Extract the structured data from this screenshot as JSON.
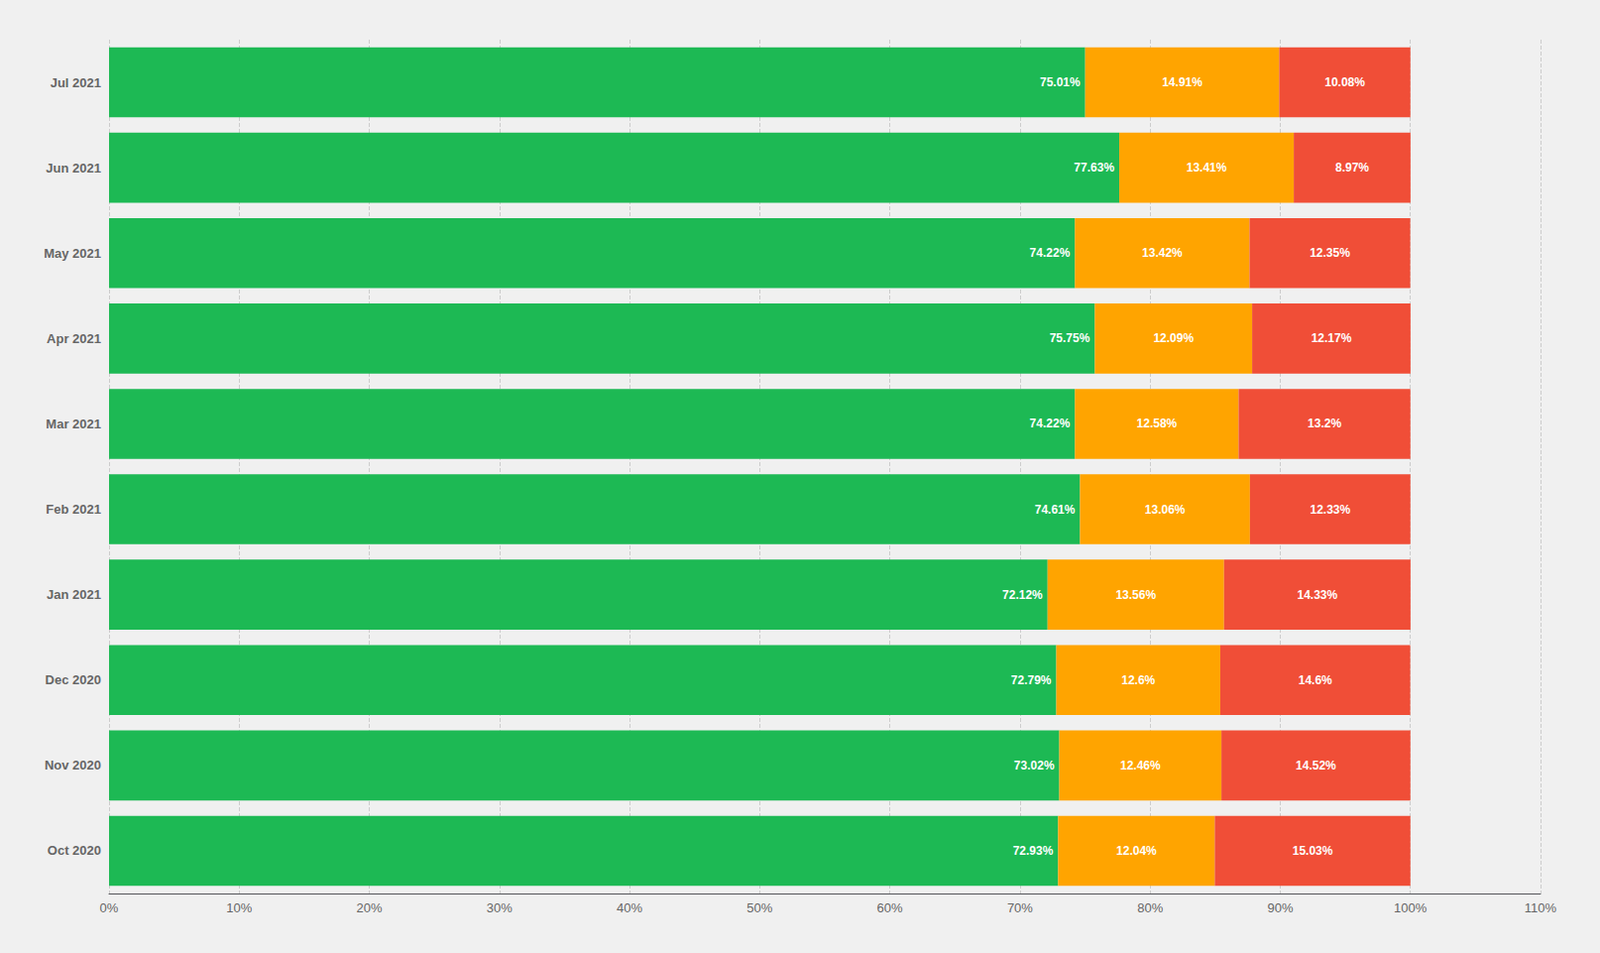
{
  "chart_data": {
    "type": "bar",
    "orientation": "horizontal",
    "stacked": true,
    "data_labels": true,
    "grid": true,
    "categories": [
      "Oct 2020",
      "Nov 2020",
      "Dec 2020",
      "Jan 2021",
      "Feb 2021",
      "Mar 2021",
      "Apr 2021",
      "May 2021",
      "Jun 2021",
      "Jul 2021"
    ],
    "xlim": [
      0,
      110
    ],
    "xticks": [
      {
        "value": 0,
        "label": "0%"
      },
      {
        "value": 10,
        "label": "10%"
      },
      {
        "value": 20,
        "label": "20%"
      },
      {
        "value": 30,
        "label": "30%"
      },
      {
        "value": 40,
        "label": "40%"
      },
      {
        "value": 50,
        "label": "50%"
      },
      {
        "value": 60,
        "label": "60%"
      },
      {
        "value": 70,
        "label": "70%"
      },
      {
        "value": 80,
        "label": "80%"
      },
      {
        "value": 90,
        "label": "90%"
      },
      {
        "value": 100,
        "label": "100%"
      },
      {
        "value": 110,
        "label": "110%"
      }
    ],
    "series": [
      {
        "color": "#1db954",
        "values": [
          72.93,
          73.02,
          72.79,
          72.12,
          74.61,
          74.22,
          75.75,
          74.22,
          77.63,
          75.01
        ],
        "value_labels": [
          "72.93%",
          "73.02%",
          "72.79%",
          "72.12%",
          "74.61%",
          "74.22%",
          "75.75%",
          "74.22%",
          "77.63%",
          "75.01%"
        ]
      },
      {
        "color": "#ffa400",
        "values": [
          12.04,
          12.46,
          12.6,
          13.56,
          13.06,
          12.58,
          12.09,
          13.42,
          13.41,
          14.91
        ],
        "value_labels": [
          "12.04%",
          "12.46%",
          "12.6%",
          "13.56%",
          "13.06%",
          "12.58%",
          "12.09%",
          "13.42%",
          "13.41%",
          "14.91%"
        ]
      },
      {
        "color": "#f04e37",
        "values": [
          15.03,
          14.52,
          14.6,
          14.33,
          12.33,
          13.2,
          12.17,
          12.35,
          8.97,
          10.08
        ],
        "value_labels": [
          "15.03%",
          "14.52%",
          "14.6%",
          "14.33%",
          "12.33%",
          "13.2%",
          "12.17%",
          "12.35%",
          "8.97%",
          "10.08%"
        ]
      }
    ]
  }
}
